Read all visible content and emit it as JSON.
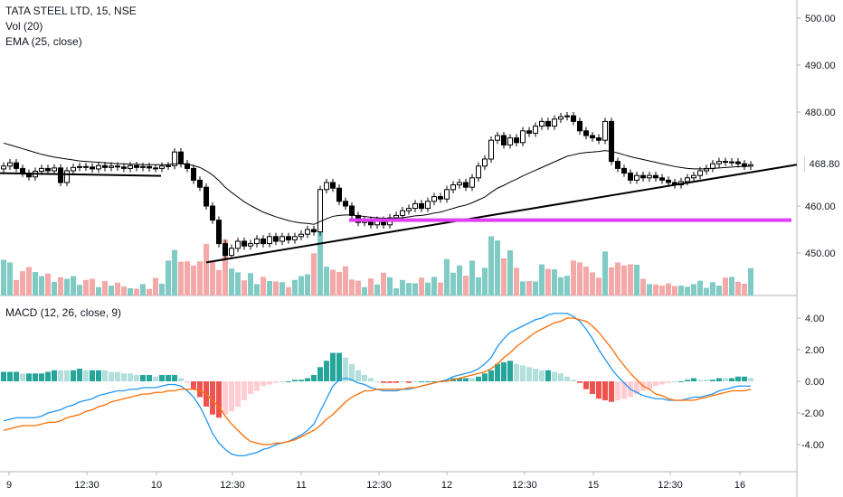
{
  "main_pane": {
    "title": "TATA STEEL LTD, 15, NSE",
    "indicators": [
      "Vol (20)",
      "EMA (25, close)"
    ],
    "last_price": "468.80",
    "price_axis_labels": [
      "500.00",
      "490.00",
      "480.00",
      "460.00",
      "450.00"
    ]
  },
  "macd_pane": {
    "title": "MACD (12, 26, close, 9)",
    "axis_labels": [
      "4.00",
      "2.00",
      "0.00",
      "-2.00",
      "-4.00"
    ]
  },
  "time_axis": {
    "labels": [
      "9",
      "12:30",
      "10",
      "12:30",
      "11",
      "12:30",
      "12",
      "12:30",
      "15",
      "12:30",
      "16"
    ]
  },
  "colors": {
    "candle_outline": "#000000",
    "trendline": "#000000",
    "ema_line": "#000000",
    "support_line": "#e040fb",
    "volume_up": "#80cbc4",
    "volume_down": "#f4a9a9",
    "macd_line": "#2196f3",
    "signal_line": "#ff6d00",
    "hist_pos_strong": "#26a69a",
    "hist_pos_weak": "#b2dfdb",
    "hist_neg_strong": "#ef5350",
    "hist_neg_weak": "#ffcdd2"
  },
  "chart_data": {
    "type": "candlestick",
    "symbol": "TATA STEEL LTD",
    "interval": "15",
    "exchange": "NSE",
    "price_range": [
      441,
      502
    ],
    "macd_range": [
      -5.5,
      5.2
    ],
    "last_price": 468.8,
    "close": [
      468.5,
      469.2,
      468.0,
      467.0,
      466.2,
      467.4,
      468.0,
      467.5,
      468.1,
      465.0,
      467.5,
      468.2,
      468.4,
      468.3,
      467.9,
      468.6,
      468.2,
      468.5,
      468.3,
      468.0,
      468.6,
      468.2,
      468.4,
      468.1,
      468.0,
      468.5,
      468.6,
      471.5,
      469.0,
      468.0,
      465.5,
      464.0,
      460.0,
      457.0,
      452.0,
      449.5,
      451.0,
      452.5,
      451.5,
      452.0,
      453.0,
      452.0,
      453.5,
      452.5,
      453.5,
      452.8,
      453.5,
      454.0,
      455.0,
      454.5,
      463.5,
      465.0,
      463.8,
      461.0,
      460.0,
      458.0,
      456.5,
      457.0,
      456.0,
      457.0,
      456.0,
      457.5,
      458.0,
      459.0,
      459.5,
      460.5,
      459.5,
      461.0,
      462.0,
      461.5,
      463.5,
      464.5,
      465.0,
      464.0,
      466.0,
      468.5,
      470.0,
      474.0,
      475.0,
      473.0,
      474.5,
      473.5,
      476.0,
      475.5,
      477.0,
      478.0,
      477.0,
      478.5,
      479.0,
      479.2,
      478.0,
      476.0,
      475.0,
      474.5,
      474.0,
      478.0,
      469.5,
      468.0,
      467.0,
      465.5,
      466.5,
      466.0,
      466.5,
      466.0,
      465.5,
      465.0,
      464.5,
      465.2,
      466.0,
      466.5,
      467.5,
      468.0,
      469.0,
      469.5,
      469.3,
      469.4,
      469.0,
      468.5,
      468.8
    ],
    "ema": [
      473.4,
      473.0,
      472.6,
      472.2,
      471.8,
      471.4,
      471.0,
      470.7,
      470.4,
      470.2,
      470.0,
      469.8,
      469.6,
      469.5,
      469.4,
      469.3,
      469.2,
      469.1,
      469.0,
      469.0,
      468.9,
      468.9,
      468.8,
      468.8,
      468.8,
      468.8,
      468.8,
      469.0,
      469.0,
      468.9,
      468.6,
      468.2,
      467.5,
      466.6,
      465.4,
      464.0,
      462.9,
      461.9,
      460.9,
      460.1,
      459.4,
      458.7,
      458.2,
      457.7,
      457.3,
      456.9,
      456.6,
      456.4,
      456.3,
      456.1,
      456.7,
      457.3,
      457.8,
      458.0,
      458.1,
      458.1,
      457.9,
      457.8,
      457.6,
      457.5,
      457.4,
      457.4,
      457.4,
      457.5,
      457.7,
      457.9,
      458.0,
      458.2,
      458.5,
      458.7,
      459.1,
      459.5,
      459.9,
      460.2,
      460.7,
      461.3,
      461.9,
      462.9,
      463.8,
      464.4,
      465.1,
      465.7,
      466.4,
      467.0,
      467.6,
      468.2,
      468.8,
      469.4,
      470.0,
      470.6,
      470.9,
      471.2,
      471.4,
      471.5,
      471.6,
      471.8,
      471.6,
      471.3,
      470.9,
      470.5,
      470.2,
      469.9,
      469.6,
      469.3,
      469.0,
      468.7,
      468.4,
      468.2,
      468.0,
      467.9,
      467.9,
      467.9,
      468.0,
      468.1,
      468.2,
      468.3,
      468.4,
      468.4,
      468.5
    ],
    "volume_relative": [
      0.94,
      0.87,
      0.41,
      0.64,
      0.75,
      0.62,
      0.51,
      0.58,
      0.36,
      0.48,
      0.44,
      0.51,
      0.28,
      0.41,
      0.44,
      0.22,
      0.38,
      0.26,
      0.34,
      0.24,
      0.19,
      0.18,
      0.3,
      0.17,
      0.46,
      0.31,
      0.92,
      1.2,
      0.89,
      0.9,
      0.79,
      0.9,
      1.36,
      0.88,
      0.67,
      1.48,
      0.71,
      0.61,
      0.4,
      0.59,
      0.3,
      0.49,
      0.38,
      0.37,
      0.35,
      0.22,
      0.41,
      0.51,
      0.56,
      1.11,
      1.81,
      0.76,
      0.68,
      0.62,
      0.77,
      0.42,
      0.39,
      0.22,
      0.45,
      0.29,
      0.6,
      0.48,
      0.19,
      0.41,
      0.33,
      0.32,
      0.47,
      0.34,
      0.49,
      0.34,
      0.96,
      0.6,
      0.79,
      0.52,
      0.92,
      0.48,
      0.73,
      1.56,
      1.45,
      0.98,
      1.19,
      0.73,
      0.37,
      0.38,
      0.37,
      0.82,
      0.7,
      0.69,
      0.48,
      0.52,
      0.92,
      0.87,
      0.76,
      0.61,
      0.47,
      1.16,
      0.74,
      0.87,
      0.79,
      0.82,
      0.81,
      0.44,
      0.3,
      0.29,
      0.26,
      0.32,
      0.25,
      0.26,
      0.23,
      0.3,
      0.39,
      0.2,
      0.35,
      0.26,
      0.47,
      0.49,
      0.36,
      0.31,
      0.72
    ],
    "macd": [
      -2.5,
      -2.4,
      -2.3,
      -2.3,
      -2.3,
      -2.3,
      -2.2,
      -2.0,
      -1.9,
      -1.8,
      -1.6,
      -1.5,
      -1.3,
      -1.2,
      -1.1,
      -0.9,
      -0.8,
      -0.7,
      -0.6,
      -0.6,
      -0.5,
      -0.5,
      -0.4,
      -0.4,
      -0.4,
      -0.3,
      -0.2,
      -0.2,
      -0.3,
      -0.6,
      -1.0,
      -1.6,
      -2.4,
      -3.3,
      -3.9,
      -4.3,
      -4.6,
      -4.7,
      -4.7,
      -4.6,
      -4.5,
      -4.3,
      -4.2,
      -4.0,
      -3.9,
      -3.8,
      -3.6,
      -3.4,
      -3.1,
      -2.7,
      -1.9,
      -1.1,
      -0.3,
      0.1,
      0.2,
      0.1,
      -0.1,
      -0.2,
      -0.4,
      -0.5,
      -0.6,
      -0.6,
      -0.6,
      -0.5,
      -0.5,
      -0.4,
      -0.3,
      -0.2,
      -0.1,
      -0.0,
      0.1,
      0.3,
      0.4,
      0.5,
      0.6,
      0.8,
      1.1,
      1.5,
      2.2,
      2.7,
      3.1,
      3.3,
      3.5,
      3.7,
      3.9,
      4.0,
      4.2,
      4.3,
      4.3,
      4.3,
      4.1,
      3.8,
      3.3,
      2.7,
      2.0,
      1.4,
      0.8,
      0.3,
      -0.1,
      -0.5,
      -0.7,
      -0.9,
      -1.0,
      -1.1,
      -1.1,
      -1.2,
      -1.2,
      -1.2,
      -1.1,
      -1.0,
      -1.0,
      -0.9,
      -0.8,
      -0.6,
      -0.5,
      -0.4,
      -0.3,
      -0.3,
      -0.3
    ],
    "signal": [
      -3.1,
      -3.0,
      -2.9,
      -2.8,
      -2.8,
      -2.8,
      -2.7,
      -2.6,
      -2.6,
      -2.5,
      -2.3,
      -2.2,
      -2.1,
      -1.9,
      -1.8,
      -1.6,
      -1.5,
      -1.3,
      -1.2,
      -1.1,
      -1.0,
      -0.9,
      -0.8,
      -0.8,
      -0.7,
      -0.7,
      -0.6,
      -0.6,
      -0.5,
      -0.5,
      -0.5,
      -0.6,
      -0.8,
      -1.2,
      -1.6,
      -2.2,
      -2.7,
      -3.1,
      -3.5,
      -3.8,
      -3.9,
      -4.0,
      -4.0,
      -3.9,
      -3.9,
      -3.8,
      -3.7,
      -3.5,
      -3.3,
      -3.1,
      -2.8,
      -2.4,
      -2.1,
      -1.7,
      -1.3,
      -1.0,
      -0.8,
      -0.6,
      -0.6,
      -0.5,
      -0.5,
      -0.5,
      -0.5,
      -0.5,
      -0.4,
      -0.4,
      -0.3,
      -0.2,
      -0.1,
      -0.0,
      0.0,
      0.1,
      0.2,
      0.3,
      0.4,
      0.5,
      0.6,
      0.8,
      1.1,
      1.5,
      1.8,
      2.2,
      2.5,
      2.8,
      3.1,
      3.3,
      3.5,
      3.7,
      3.8,
      4.0,
      4.0,
      3.9,
      3.8,
      3.5,
      3.1,
      2.6,
      2.1,
      1.5,
      1.0,
      0.5,
      0.1,
      -0.3,
      -0.5,
      -0.8,
      -0.9,
      -1.1,
      -1.2,
      -1.2,
      -1.2,
      -1.2,
      -1.1,
      -1.0,
      -0.9,
      -0.8,
      -0.7,
      -0.6,
      -0.6,
      -0.6,
      -0.5
    ],
    "annotations": {
      "support_level": 457,
      "trendline_from": 448,
      "trendline_to": 468.8,
      "range_trendline_level": 467
    }
  }
}
